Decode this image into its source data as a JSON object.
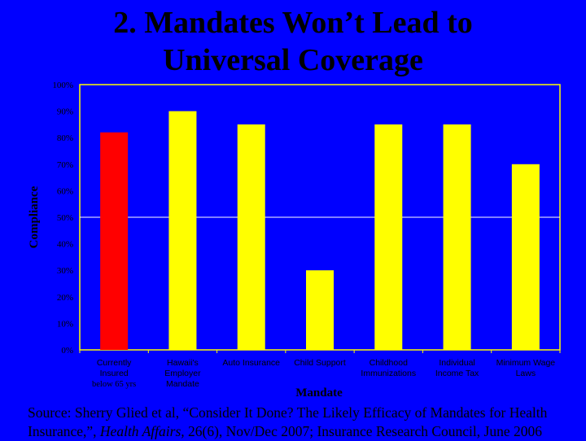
{
  "slide": {
    "title_line1": "2. Mandates Won’t Lead to",
    "title_line2": "Universal Coverage",
    "source_part1": "Source: Sherry Glied et al, “Consider It Done? The Likely Efficacy of Mandates for Health Insurance,”, ",
    "source_journal": "Health Affairs,",
    "source_part2": " 26(6), Nov/Dec 2007; Insurance Research Council, June 2006"
  },
  "colors": {
    "background": "#0000ff",
    "highlight_bar": "#ff0000",
    "bar": "#ffff00",
    "plot_border": "#ffff00",
    "reference_line": "#ffffff",
    "text": "#000000"
  },
  "chart_data": {
    "type": "bar",
    "title": "",
    "xlabel": "Mandate",
    "ylabel": "Compliance",
    "ylim": [
      0,
      100
    ],
    "yticks": [
      "0%",
      "10%",
      "20%",
      "30%",
      "40%",
      "50%",
      "60%",
      "70%",
      "80%",
      "90%",
      "100%"
    ],
    "tick_values": [
      0,
      10,
      20,
      30,
      40,
      50,
      60,
      70,
      80,
      90,
      100
    ],
    "reference_line": 50,
    "grid": false,
    "legend": "none",
    "categories": [
      [
        "Currently",
        "Insured"
      ],
      [
        "Hawaii's",
        "Employer",
        "Mandate"
      ],
      [
        "Auto Insurance"
      ],
      [
        "Child Support"
      ],
      [
        "Childhood",
        "Immunizations"
      ],
      [
        "Individual",
        "Income Tax"
      ],
      [
        "Minimum Wage",
        "Laws"
      ]
    ],
    "category_notes": [
      "below 65 yrs",
      "",
      "",
      "",
      "",
      "",
      ""
    ],
    "values": [
      82,
      90,
      85,
      30,
      85,
      85,
      70
    ],
    "highlight_index": 0
  }
}
